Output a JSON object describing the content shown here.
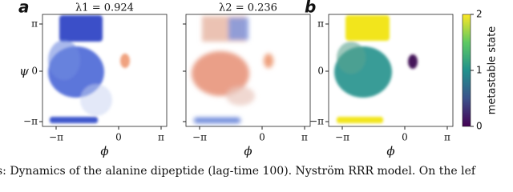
{
  "panels": [
    {
      "label": "a",
      "title": "λ1 = 0.924"
    },
    {
      "title": "λ2 = 0.236"
    },
    {
      "label": "b"
    }
  ],
  "x_axis": {
    "label": "ϕ",
    "ticks": [
      "−π",
      "0",
      "π"
    ]
  },
  "y_axis": {
    "label": "ψ",
    "ticks": [
      "π",
      "0",
      "−π"
    ]
  },
  "colorbar": {
    "label": "metastable state",
    "lim": [
      0,
      2
    ],
    "ticks": [
      0,
      1,
      2
    ]
  },
  "caption": "s: Dynamics of the alanine dipeptide (lag-time 100). Nyström RRR model. On the lef"
}
